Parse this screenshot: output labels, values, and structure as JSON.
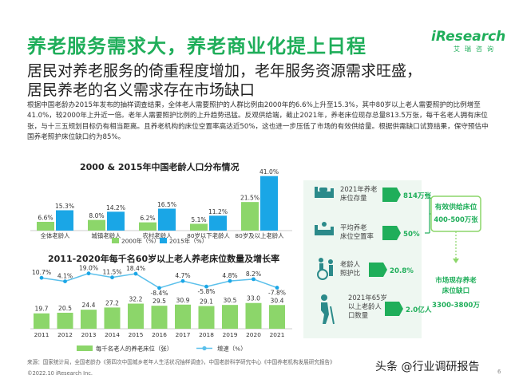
{
  "header": {
    "title": "养老服务需求大，养老商业化提上日程",
    "logo": "iResearch",
    "logo_sub": "艾瑞咨询"
  },
  "subtitle": {
    "line1": "居民对养老服务的倚重程度增加，老年服务资源需求旺盛，",
    "line2": "居民养老的名义需求存在市场缺口"
  },
  "paragraph": "根据中国老龄办2015年发布的抽样调查结果，全体老人需要照护的人群比例由2000年的6.6%上升至15.3%，其中80岁以上老人需要照护的比例增至41.0%，较2000年上升近一倍。老年人需要照护比例的上升趋势迅猛。反观供给端，截止2021年，养老床位现存总量813.5万张，每千名老人拥有床位张，与十三五规划目标仍有相当距离。且养老机构的床位空置率高达近50%，这也进一步压低了市场的有效供给量。根据供需缺口试算结果，保守预估中国养老照护床位缺口约为85%。",
  "chart1": {
    "title": "2000 & 2015年中国老龄人口分布情况",
    "chart_data": {
      "type": "bar",
      "title": "2000 & 2015年中国老龄人口分布情况",
      "categories": [
        "全体老龄人",
        "城镇老龄人",
        "农村老龄人",
        "80岁以下老龄人",
        "80岁及以上老龄人"
      ],
      "series": [
        {
          "name": "2000年（%）",
          "values": [
            6.6,
            8.0,
            6.2,
            5.1,
            21.5
          ],
          "labels": [
            "6.6%",
            "8.0%",
            "6.2%",
            "5.1%",
            "21.5%"
          ]
        },
        {
          "name": "2015年（%）",
          "values": [
            15.3,
            14.2,
            16.5,
            11.2,
            41.0
          ],
          "labels": [
            "15.3%",
            "14.2%",
            "16.5%",
            "11.2%",
            "41.0%"
          ]
        }
      ],
      "ylim": [
        0,
        45
      ],
      "legend": "bottom"
    }
  },
  "chart2": {
    "title": "2011-2020年每千名60岁以上老人养老床位数量及增长率",
    "chart_data": {
      "type": "bar",
      "title": "2011-2020年每千名60岁以上老人养老床位数量及增长率",
      "categories": [
        "2011",
        "2012",
        "2013",
        "2014",
        "2015",
        "2016",
        "2017",
        "2018",
        "2019",
        "2020",
        "2021"
      ],
      "series": [
        {
          "name": "每千名老人的养老床位（张）",
          "values": [
            19.7,
            20.5,
            24.4,
            27.2,
            32.2,
            29.5,
            30.9,
            29.1,
            30.5,
            33.0,
            30.4
          ],
          "labels": [
            "19.7",
            "20.5",
            "24.4",
            "27.2",
            "32.2",
            "29.5",
            "30.9",
            "29.1",
            "30.5",
            "33.0",
            "30.4"
          ]
        },
        {
          "name": "增速（%）",
          "values": [
            10.7,
            4.1,
            19.0,
            11.5,
            18.4,
            -8.4,
            4.7,
            -5.8,
            4.8,
            8.2,
            -7.8
          ],
          "labels": [
            "10.7%",
            "4.1%",
            "19.0%",
            "11.5%",
            "18.4%",
            "-8.4%",
            "4.7%",
            "-5.8%",
            "4.8%",
            "8.2%",
            "-7.8%"
          ]
        }
      ],
      "legend": "bottom"
    }
  },
  "infographic": {
    "rows": [
      {
        "label": "2021年养老床位存量",
        "value": "814万张"
      },
      {
        "label": "平均养老床位空置率",
        "value": "50%"
      },
      {
        "label": "老龄人照护比",
        "value": "20.8%"
      },
      {
        "label": "2021年65岁以上老龄人口数量",
        "value": "2.0亿人"
      }
    ],
    "supply_title": "有效供给床位",
    "supply_value": "400-500万张",
    "gap_title": "市场现存养老床位缺口",
    "gap_value": "3300-3800万"
  },
  "footer": {
    "source": "来源：国家统计局，全国老龄办《第四次中国城乡老年人生活状况抽样调查》，中国老龄科学研究中心《中国养老机构发展研究报告》",
    "copyright": "©2022.10 iResearch Inc.",
    "watermark": "头条 @行业调研报告",
    "page": "6"
  },
  "colors": {
    "green": "#1fae5a",
    "light_green": "#8cd66a",
    "blue": "#1aa6e6",
    "light_blue": "#5bc0eb",
    "dark_teal": "#2b8a8a"
  }
}
